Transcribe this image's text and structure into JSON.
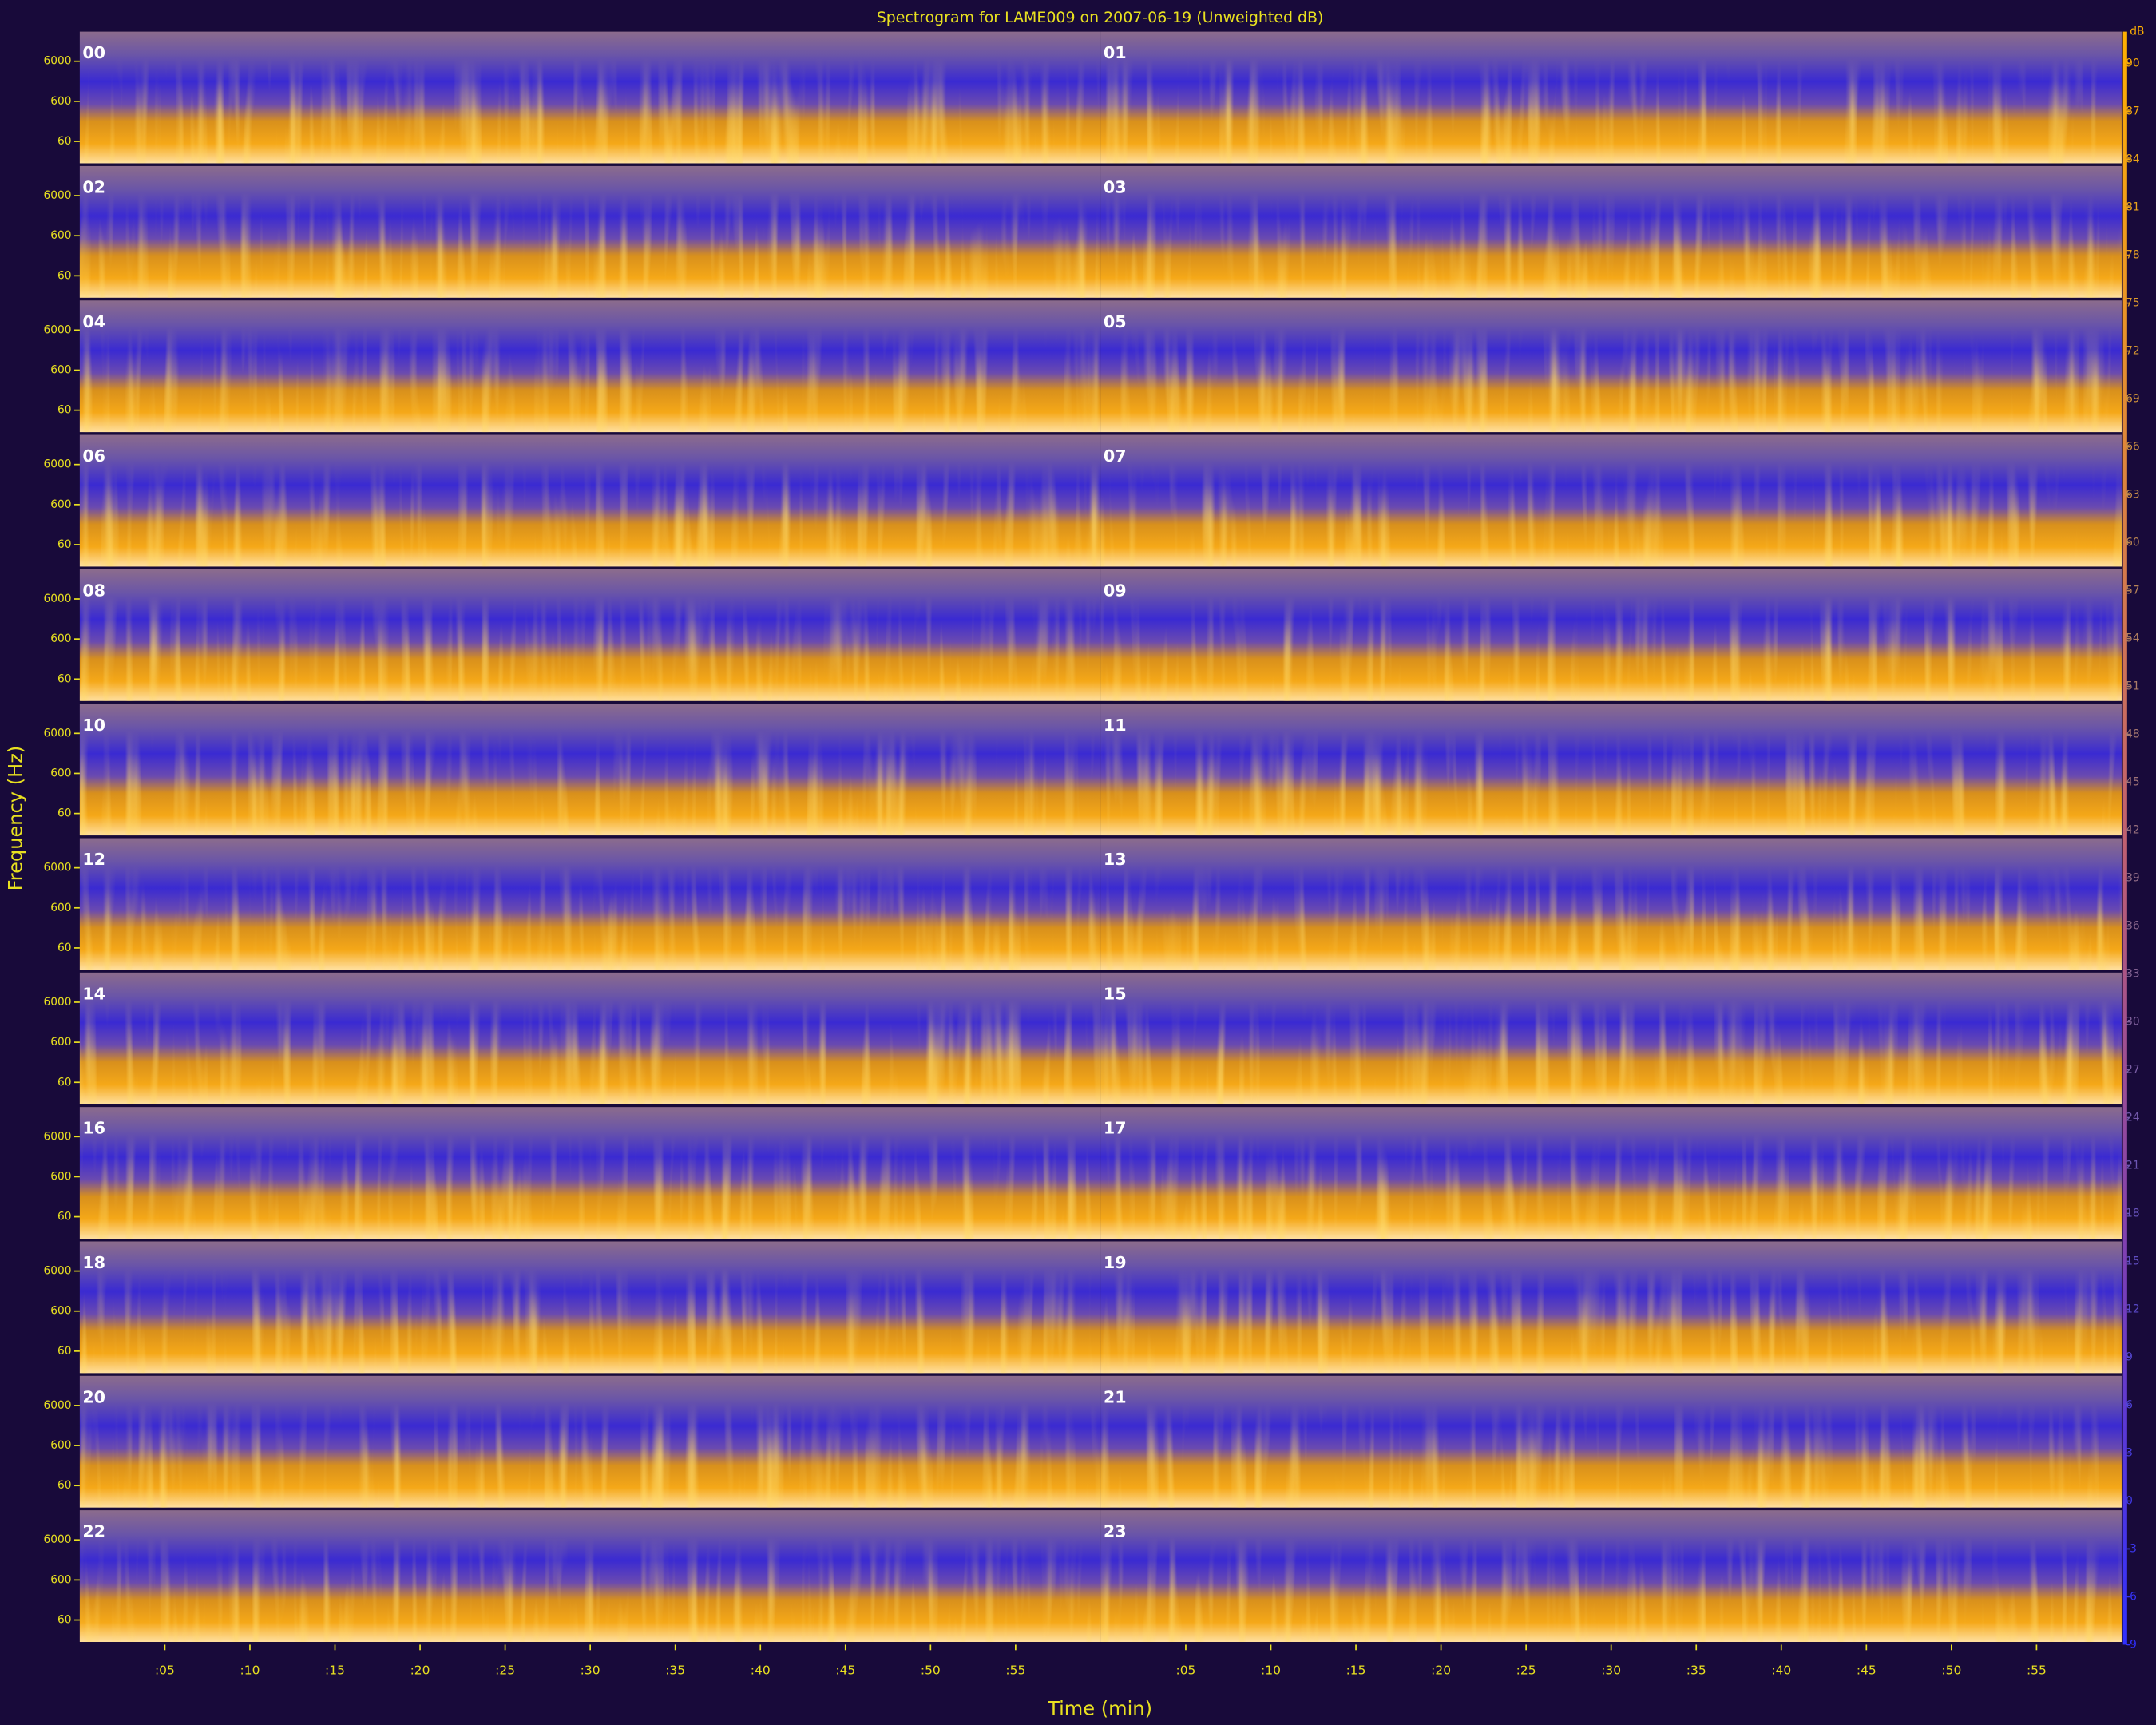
{
  "chart_data": {
    "type": "spectrogram",
    "title": "Spectrogram for LAME009 on 2007-06-19 (Unweighted dB)",
    "xlabel": "Time (min)",
    "ylabel": "Frequency (Hz)",
    "hours": [
      "00",
      "01",
      "02",
      "03",
      "04",
      "05",
      "06",
      "07",
      "08",
      "09",
      "10",
      "11",
      "12",
      "13",
      "14",
      "15",
      "16",
      "17",
      "18",
      "19",
      "20",
      "21",
      "22",
      "23"
    ],
    "xlim": [
      0,
      60
    ],
    "xticks": [
      {
        "value": 5,
        "label": ":05"
      },
      {
        "value": 10,
        "label": ":10"
      },
      {
        "value": 15,
        "label": ":15"
      },
      {
        "value": 20,
        "label": ":20"
      },
      {
        "value": 25,
        "label": ":25"
      },
      {
        "value": 30,
        "label": ":30"
      },
      {
        "value": 35,
        "label": ":35"
      },
      {
        "value": 40,
        "label": ":40"
      },
      {
        "value": 45,
        "label": ":45"
      },
      {
        "value": 50,
        "label": ":50"
      },
      {
        "value": 55,
        "label": ":55"
      }
    ],
    "ylim": [
      17,
      33000
    ],
    "yticks": [
      60,
      600,
      6000
    ],
    "log_y": true,
    "colorbar": {
      "label": "dB",
      "lim": [
        -9,
        92
      ],
      "ticks": [
        90,
        87,
        84,
        81,
        78,
        75,
        72,
        69,
        66,
        63,
        60,
        57,
        54,
        51,
        48,
        45,
        42,
        39,
        36,
        33,
        30,
        27,
        24,
        21,
        18,
        15,
        12,
        9,
        6,
        3,
        0,
        -3,
        -6,
        -9
      ]
    }
  }
}
